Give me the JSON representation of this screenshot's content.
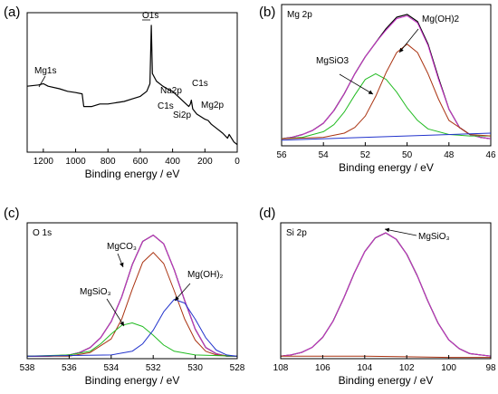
{
  "chart_data": [
    {
      "type": "line",
      "panel_label": "(a)",
      "title": "",
      "xlabel": "Binding energy / eV",
      "ylabel": "",
      "xlim": [
        1300,
        0
      ],
      "xticks": [
        1200,
        1000,
        800,
        600,
        400,
        200,
        0
      ],
      "series": [
        {
          "color": "#000000",
          "x": [
            1300,
            1230,
            1200,
            1170,
            1100,
            1050,
            1000,
            960,
            950,
            900,
            850,
            800,
            750,
            700,
            650,
            600,
            560,
            540,
            532,
            525,
            500,
            460,
            420,
            400,
            350,
            300,
            290,
            284,
            275,
            250,
            200,
            180,
            160,
            120,
            90,
            60,
            50,
            20,
            0
          ],
          "y": [
            52,
            53,
            54,
            52,
            50,
            48,
            47,
            46,
            36,
            36,
            38,
            38,
            39,
            40,
            42,
            44,
            48,
            54,
            100,
            62,
            56,
            52,
            49,
            48,
            42,
            36,
            38,
            41,
            34,
            30,
            26,
            25,
            22,
            18,
            15,
            11,
            14,
            8,
            6
          ]
        }
      ],
      "annotations": [
        {
          "label": "O1s",
          "x": 531
        },
        {
          "label": "Mg1s",
          "x": 1303
        },
        {
          "label": "Na2p",
          "x": 30
        },
        {
          "label": "C1s",
          "x": 285
        },
        {
          "label": "C1s",
          "x": 290
        },
        {
          "label": "Si2p",
          "x": 102
        },
        {
          "label": "Mg2p",
          "x": 50
        }
      ]
    },
    {
      "type": "line",
      "panel_label": "(b)",
      "title": "Mg 2p",
      "xlabel": "Binding energy / eV",
      "ylabel": "",
      "xlim": [
        56,
        46
      ],
      "xticks": [
        56,
        54,
        52,
        50,
        48,
        46
      ],
      "series": [
        {
          "name": "data",
          "color": "#000000",
          "x": [
            56.0,
            55.5,
            55.0,
            54.5,
            54.0,
            53.5,
            53.0,
            52.5,
            52.0,
            51.5,
            51.0,
            50.5,
            50.0,
            49.5,
            49.0,
            48.5,
            48.0,
            47.5,
            47.0,
            46.5,
            46.0
          ],
          "y": [
            5,
            6,
            8,
            11,
            16,
            25,
            37,
            51,
            63,
            73,
            83,
            91,
            93,
            88,
            72,
            48,
            26,
            13,
            8,
            6,
            5
          ]
        },
        {
          "name": "fit",
          "color": "#cc33cc",
          "x": [
            56.0,
            55.5,
            55.0,
            54.5,
            54.0,
            53.5,
            53.0,
            52.5,
            52.0,
            51.5,
            51.0,
            50.5,
            50.0,
            49.5,
            49.0,
            48.5,
            48.0,
            47.5,
            47.0,
            46.5,
            46.0
          ],
          "y": [
            5,
            6,
            8,
            11,
            16,
            25,
            37,
            51,
            63,
            73,
            82,
            90,
            92,
            87,
            71,
            47,
            26,
            13,
            8,
            6,
            5
          ]
        },
        {
          "name": "MgSiO3",
          "color": "#22bb22",
          "x": [
            56.0,
            55.0,
            54.0,
            53.5,
            53.0,
            52.5,
            52.0,
            51.5,
            51.0,
            50.5,
            50.0,
            49.5,
            49.0,
            48.0,
            47.0,
            46.0
          ],
          "y": [
            5,
            6,
            10,
            15,
            24,
            36,
            47,
            51,
            47,
            38,
            27,
            18,
            12,
            8,
            7,
            7
          ]
        },
        {
          "name": "Mg(OH)2",
          "color": "#aa3311",
          "x": [
            56.0,
            54.0,
            53.0,
            52.5,
            52.0,
            51.5,
            51.0,
            50.5,
            50.0,
            49.5,
            49.0,
            48.5,
            48.0,
            47.0,
            46.0
          ],
          "y": [
            5,
            6,
            9,
            13,
            21,
            35,
            52,
            66,
            72,
            66,
            51,
            33,
            18,
            8,
            7
          ]
        },
        {
          "name": "background",
          "color": "#2233cc",
          "x": [
            56,
            46
          ],
          "y": [
            4,
            9
          ]
        }
      ],
      "annotations": [
        {
          "label": "MgSiO3",
          "x": 51.6
        },
        {
          "label": "Mg(OH)2",
          "x": 50.2
        }
      ]
    },
    {
      "type": "line",
      "panel_label": "(c)",
      "title": "O 1s",
      "xlabel": "Binding energy / eV",
      "ylabel": "",
      "xlim": [
        538,
        528
      ],
      "xticks": [
        538,
        536,
        534,
        532,
        530,
        528
      ],
      "series": [
        {
          "name": "data",
          "color": "#000000",
          "x": [
            538.0,
            537.0,
            536.0,
            535.5,
            535.0,
            534.5,
            534.0,
            533.5,
            533.0,
            532.5,
            532.0,
            531.5,
            531.0,
            530.5,
            530.0,
            529.5,
            529.0,
            528.5,
            528.0
          ],
          "y": [
            2,
            2,
            3,
            5,
            9,
            17,
            30,
            50,
            76,
            95,
            100,
            93,
            72,
            47,
            24,
            9,
            4,
            2,
            2
          ]
        },
        {
          "name": "fit",
          "color": "#cc33cc",
          "x": [
            538.0,
            537.0,
            536.0,
            535.5,
            535.0,
            534.5,
            534.0,
            533.5,
            533.0,
            532.5,
            532.0,
            531.5,
            531.0,
            530.5,
            530.0,
            529.5,
            529.0,
            528.5,
            528.0
          ],
          "y": [
            2,
            2,
            3,
            5,
            9,
            17,
            30,
            50,
            76,
            95,
            100,
            93,
            72,
            47,
            24,
            9,
            4,
            2,
            2
          ]
        },
        {
          "name": "MgCO3",
          "color": "#aa3311",
          "x": [
            538.0,
            536.0,
            535.0,
            534.0,
            533.5,
            533.0,
            532.5,
            532.0,
            531.5,
            531.0,
            530.5,
            530.0,
            529.5,
            529.0,
            528.0
          ],
          "y": [
            2,
            2,
            5,
            16,
            32,
            56,
            78,
            86,
            77,
            55,
            32,
            15,
            6,
            3,
            2
          ]
        },
        {
          "name": "MgSiO3",
          "color": "#22bb22",
          "x": [
            538.0,
            536.0,
            535.0,
            534.5,
            534.0,
            533.5,
            533.0,
            532.5,
            532.0,
            531.5,
            531.0,
            530.0,
            528.0
          ],
          "y": [
            2,
            3,
            6,
            12,
            20,
            27,
            29,
            26,
            19,
            11,
            6,
            3,
            2
          ]
        },
        {
          "name": "Mg(OH)2",
          "color": "#2233cc",
          "x": [
            538.0,
            534.0,
            533.0,
            532.5,
            532.0,
            531.5,
            531.0,
            530.5,
            530.0,
            529.5,
            529.0,
            528.5,
            528.0
          ],
          "y": [
            2,
            3,
            6,
            12,
            23,
            38,
            48,
            45,
            32,
            17,
            7,
            3,
            2
          ]
        }
      ],
      "annotations": [
        {
          "label": "MgCO₃",
          "x": 532.1
        },
        {
          "label": "MgSiO₃",
          "x": 533.1
        },
        {
          "label": "Mg(OH)₂",
          "x": 530.8
        }
      ]
    },
    {
      "type": "line",
      "panel_label": "(d)",
      "title": "Si 2p",
      "xlabel": "Binding energy / eV",
      "ylabel": "",
      "xlim": [
        108,
        98
      ],
      "xticks": [
        108,
        106,
        104,
        102,
        100,
        98
      ],
      "series": [
        {
          "name": "data",
          "color": "#000000",
          "x": [
            108.0,
            107.5,
            107.0,
            106.5,
            106.0,
            105.5,
            105.0,
            104.5,
            104.0,
            103.5,
            103.0,
            102.5,
            102.0,
            101.5,
            101.0,
            100.5,
            100.0,
            99.5,
            99.0,
            98.5,
            98.0
          ],
          "y": [
            2,
            3,
            5,
            9,
            17,
            30,
            48,
            68,
            85,
            96,
            100,
            95,
            83,
            66,
            46,
            28,
            15,
            8,
            4,
            3,
            2
          ]
        },
        {
          "name": "fit",
          "color": "#cc33cc",
          "x": [
            108.0,
            107.5,
            107.0,
            106.5,
            106.0,
            105.5,
            105.0,
            104.5,
            104.0,
            103.5,
            103.0,
            102.5,
            102.0,
            101.5,
            101.0,
            100.5,
            100.0,
            99.5,
            99.0,
            98.5,
            98.0
          ],
          "y": [
            2,
            3,
            5,
            9,
            17,
            30,
            48,
            68,
            85,
            96,
            100,
            95,
            83,
            66,
            46,
            28,
            15,
            8,
            4,
            3,
            2
          ]
        },
        {
          "name": "background",
          "color": "#aa3311",
          "x": [
            108,
            104,
            102,
            100,
            98
          ],
          "y": [
            2,
            2,
            1.5,
            1,
            1
          ]
        }
      ],
      "annotations": [
        {
          "label": "MgSiO₃",
          "x": 103.1
        }
      ]
    }
  ]
}
